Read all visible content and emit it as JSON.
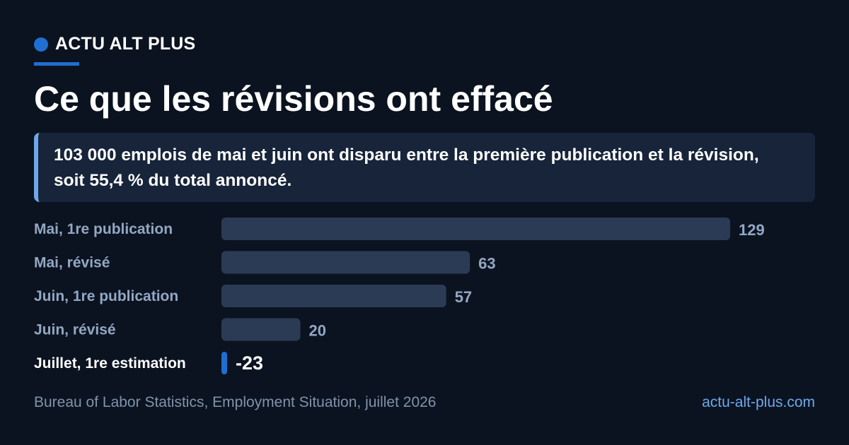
{
  "brand": {
    "name": "ACTU ALT PLUS",
    "accent": "#1f6fd1"
  },
  "title": "Ce que les révisions ont effacé",
  "callout": "103 000 emplois de mai et juin ont disparu entre la première publication et la révision, soit 55,4 % du total annoncé.",
  "chart_data": {
    "type": "bar",
    "orientation": "horizontal",
    "categories": [
      "Mai, 1re publication",
      "Mai, révisé",
      "Juin, 1re publication",
      "Juin, révisé",
      "Juillet, 1re estimation"
    ],
    "values": [
      129,
      63,
      57,
      20,
      -23
    ],
    "value_labels": [
      "129",
      "63",
      "57",
      "20",
      "-23"
    ],
    "highlight_index": 4,
    "colors": {
      "bar": "#2c3b55",
      "highlight": "#1f6fd1",
      "label": "#93a7c3",
      "highlight_label": "#ffffff"
    },
    "grid": false,
    "legend": "none"
  },
  "footer": {
    "source": "Bureau of Labor Statistics, Employment Situation, juillet 2026",
    "site": "actu-alt-plus.com"
  }
}
